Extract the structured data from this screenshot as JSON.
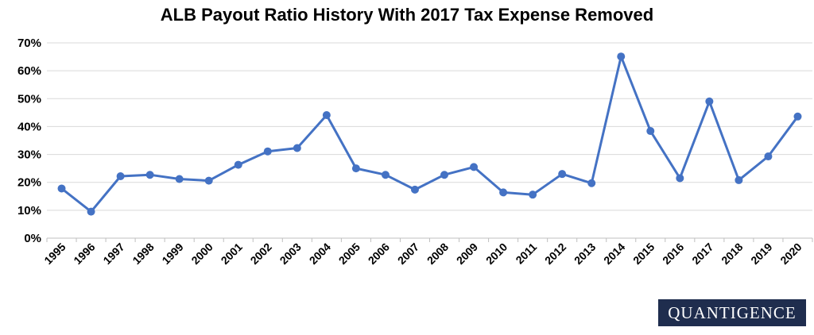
{
  "chart_data": {
    "type": "line",
    "title": "ALB Payout Ratio History With 2017 Tax Expense Removed",
    "xlabel": "",
    "ylabel": "",
    "ylim": [
      0,
      70
    ],
    "y_ticks": [
      "0%",
      "10%",
      "20%",
      "30%",
      "40%",
      "50%",
      "60%",
      "70%"
    ],
    "grid": true,
    "categories": [
      "1995",
      "1996",
      "1997",
      "1998",
      "1999",
      "2000",
      "2001",
      "2002",
      "2003",
      "2004",
      "2005",
      "2006",
      "2007",
      "2008",
      "2009",
      "2010",
      "2011",
      "2012",
      "2013",
      "2014",
      "2015",
      "2016",
      "2017",
      "2018",
      "2019",
      "2020"
    ],
    "series": [
      {
        "values": [
          17.8,
          9.5,
          22.2,
          22.7,
          21.2,
          20.6,
          26.3,
          31.1,
          32.3,
          44.1,
          25.0,
          22.7,
          17.4,
          22.7,
          25.5,
          16.4,
          15.6,
          23.0,
          19.7,
          65.1,
          38.4,
          21.5,
          49.0,
          20.8,
          29.3,
          43.6
        ],
        "color": "#4472c4"
      }
    ]
  },
  "logo": {
    "text": "QUANTIGENCE",
    "bg": "#1f2d4e"
  }
}
